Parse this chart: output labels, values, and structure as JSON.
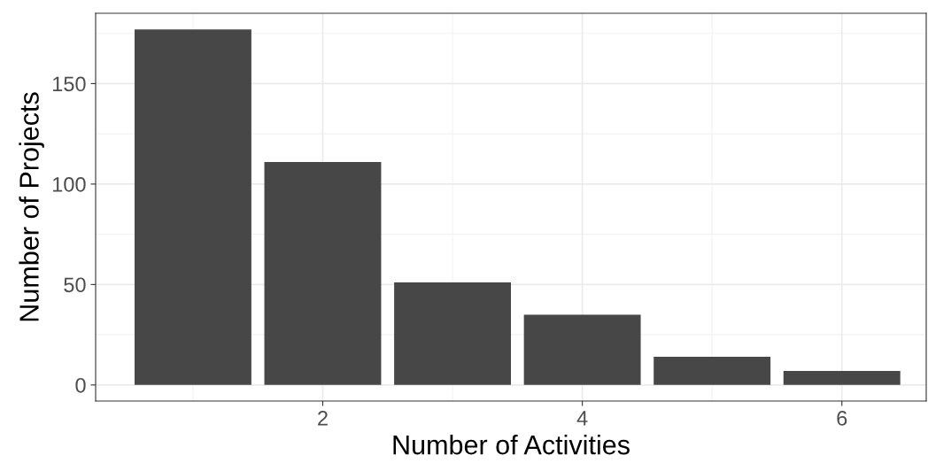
{
  "chart_data": {
    "type": "bar",
    "xlabel": "Number of Activities",
    "ylabel": "Number of Projects",
    "x": [
      1,
      2,
      3,
      4,
      5,
      6
    ],
    "values": [
      177,
      111,
      51,
      35,
      14,
      7
    ],
    "color": "#474747",
    "xlim": [
      0.25,
      6.65
    ],
    "xticks": [
      2,
      4,
      6
    ],
    "ylim": [
      -8,
      185
    ],
    "yticks": [
      0,
      50,
      100,
      150
    ],
    "grid": true
  }
}
